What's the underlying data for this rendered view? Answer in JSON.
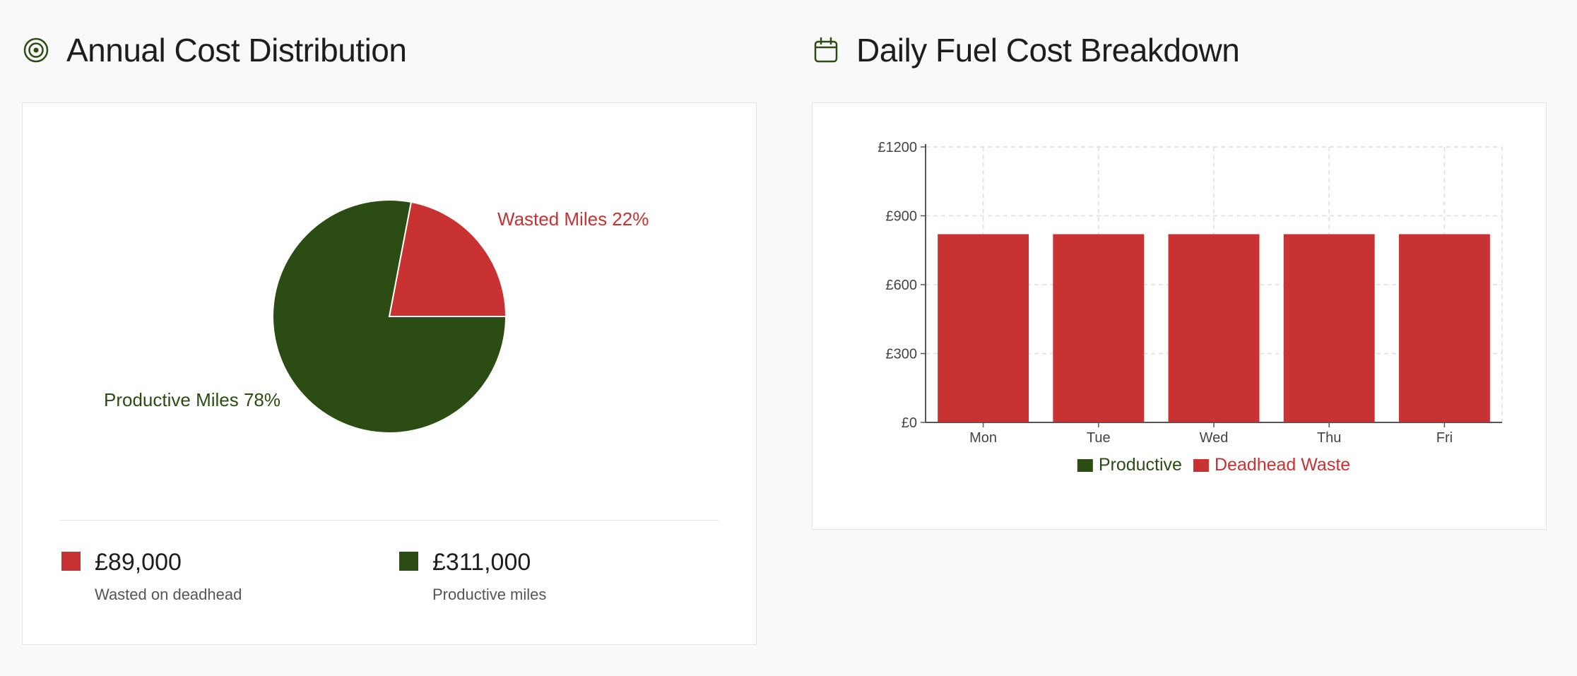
{
  "colors": {
    "productive": "#2b4d13",
    "waste": "#c83232",
    "text": "#1d1d1f",
    "muted": "#555555",
    "grid": "#dddddd"
  },
  "left_panel": {
    "title": "Annual Cost Distribution",
    "icon": "target-icon",
    "stats": [
      {
        "value": "£89,000",
        "label": "Wasted on deadhead",
        "color": "#c83232"
      },
      {
        "value": "£311,000",
        "label": "Productive miles",
        "color": "#2b4d13"
      }
    ]
  },
  "right_panel": {
    "title": "Daily Fuel Cost Breakdown",
    "icon": "calendar-icon"
  },
  "chart_data": [
    {
      "type": "pie",
      "slices": [
        {
          "name": "Wasted Miles",
          "value": 22,
          "label": "Wasted Miles 22%",
          "color": "#c83232"
        },
        {
          "name": "Productive Miles",
          "value": 78,
          "label": "Productive Miles 78%",
          "color": "#2b4d13"
        }
      ]
    },
    {
      "type": "bar",
      "stacked": true,
      "categories": [
        "Mon",
        "Tue",
        "Wed",
        "Thu",
        "Fri"
      ],
      "series": [
        {
          "name": "Productive",
          "values": [
            0,
            0,
            0,
            0,
            0
          ],
          "color": "#2b4d13"
        },
        {
          "name": "Deadhead Waste",
          "values": [
            820,
            820,
            820,
            820,
            820
          ],
          "color": "#c83232"
        }
      ],
      "ylim": [
        0,
        1200
      ],
      "yticks": [
        0,
        300,
        600,
        900,
        1200
      ],
      "ytick_labels": [
        "£0",
        "£300",
        "£600",
        "£900",
        "£1200"
      ],
      "grid": true,
      "legend": "bottom"
    }
  ]
}
